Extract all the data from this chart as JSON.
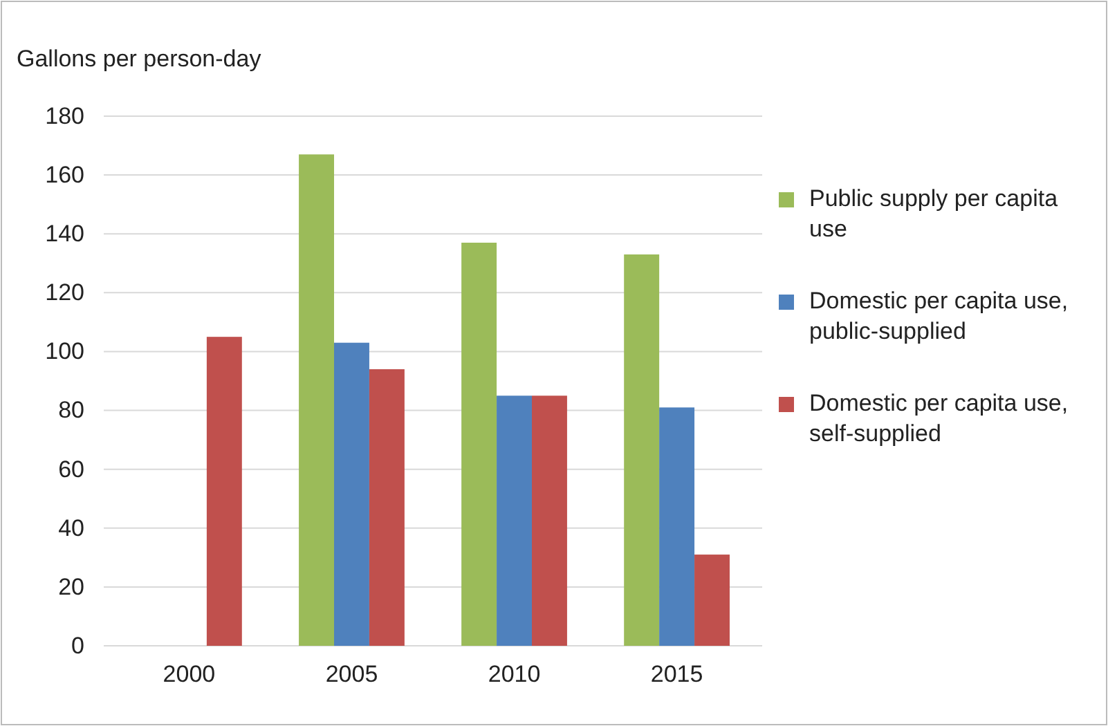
{
  "chart_data": {
    "type": "bar",
    "ylabel": "Gallons per person-day",
    "categories": [
      "2000",
      "2005",
      "2010",
      "2015"
    ],
    "series": [
      {
        "name": "Public supply per capita use",
        "color": "#9bbb59",
        "values": [
          null,
          167,
          137,
          133
        ]
      },
      {
        "name": "Domestic per capita use, public-supplied",
        "color": "#4f81bd",
        "values": [
          null,
          103,
          85,
          81
        ]
      },
      {
        "name": "Domestic per capita use, self-supplied",
        "color": "#c0504d",
        "values": [
          105,
          94,
          85,
          31
        ]
      }
    ],
    "ylim": [
      0,
      180
    ],
    "yticks": [
      0,
      20,
      40,
      60,
      80,
      100,
      120,
      140,
      160,
      180
    ],
    "grid": "y",
    "legend": "right"
  }
}
